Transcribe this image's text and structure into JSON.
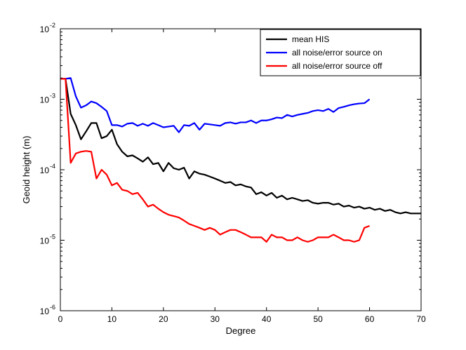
{
  "chart_data": {
    "type": "line",
    "title": "",
    "xlabel": "Degree",
    "ylabel": "Geoid height (m)",
    "xlim": [
      0,
      70
    ],
    "ylim": [
      1e-06,
      0.01
    ],
    "yscale": "log",
    "grid": false,
    "legend_position": "top-right",
    "xticks": [
      {
        "value": 0,
        "label": "0"
      },
      {
        "value": 10,
        "label": "10"
      },
      {
        "value": 20,
        "label": "20"
      },
      {
        "value": 30,
        "label": "30"
      },
      {
        "value": 40,
        "label": "40"
      },
      {
        "value": 50,
        "label": "50"
      },
      {
        "value": 60,
        "label": "60"
      },
      {
        "value": 70,
        "label": "70"
      }
    ],
    "yticks": [
      {
        "value": 1e-06,
        "base": "10",
        "exp": "-6"
      },
      {
        "value": 1e-05,
        "base": "10",
        "exp": "-5"
      },
      {
        "value": 0.0001,
        "base": "10",
        "exp": "-4"
      },
      {
        "value": 0.001,
        "base": "10",
        "exp": "-3"
      },
      {
        "value": 0.01,
        "base": "10",
        "exp": "-2"
      }
    ],
    "series": [
      {
        "name": "mean HIS",
        "color": "#000000",
        "x": [
          0,
          1,
          2,
          3,
          4,
          5,
          6,
          7,
          8,
          9,
          10,
          11,
          12,
          13,
          14,
          15,
          16,
          17,
          18,
          19,
          20,
          21,
          22,
          23,
          24,
          25,
          26,
          27,
          28,
          29,
          30,
          31,
          32,
          33,
          34,
          35,
          36,
          37,
          38,
          39,
          40,
          41,
          42,
          43,
          44,
          45,
          46,
          47,
          48,
          49,
          50,
          51,
          52,
          53,
          54,
          55,
          56,
          57,
          58,
          59,
          60,
          61,
          62,
          63,
          64,
          65,
          66,
          67,
          68,
          69,
          70
        ],
        "y": [
          0.00195,
          0.00195,
          0.00062,
          0.00043,
          0.00027,
          0.00035,
          0.00046,
          0.00046,
          0.00028,
          0.0003,
          0.00037,
          0.00023,
          0.00018,
          0.000155,
          0.00016,
          0.000145,
          0.00013,
          0.00015,
          0.00012,
          0.000125,
          9.5e-05,
          0.000125,
          0.000105,
          0.0001,
          0.000107,
          7.5e-05,
          9.5e-05,
          8.8e-05,
          8.5e-05,
          8e-05,
          7.5e-05,
          7e-05,
          6.5e-05,
          6.7e-05,
          6e-05,
          6.2e-05,
          5.8e-05,
          5.6e-05,
          4.5e-05,
          4.8e-05,
          4.3e-05,
          4.7e-05,
          4e-05,
          4.3e-05,
          3.8e-05,
          4e-05,
          3.8e-05,
          3.6e-05,
          3.7e-05,
          3.4e-05,
          3.3e-05,
          3.4e-05,
          3.4e-05,
          3.2e-05,
          3.3e-05,
          3e-05,
          3.1e-05,
          2.9e-05,
          3e-05,
          2.8e-05,
          2.9e-05,
          2.7e-05,
          2.8e-05,
          2.6e-05,
          2.7e-05,
          2.5e-05,
          2.4e-05,
          2.5e-05,
          2.4e-05,
          2.4e-05,
          2.4e-05
        ]
      },
      {
        "name": "all noise/error source on",
        "color": "#0000ff",
        "x": [
          0,
          1,
          2,
          3,
          4,
          5,
          6,
          7,
          8,
          9,
          10,
          11,
          12,
          13,
          14,
          15,
          16,
          17,
          18,
          19,
          20,
          21,
          22,
          23,
          24,
          25,
          26,
          27,
          28,
          29,
          30,
          31,
          32,
          33,
          34,
          35,
          36,
          37,
          38,
          39,
          40,
          41,
          42,
          43,
          44,
          45,
          46,
          47,
          48,
          49,
          50,
          51,
          52,
          53,
          54,
          55,
          56,
          57,
          58,
          59,
          60
        ],
        "y": [
          0.00195,
          0.00195,
          0.002,
          0.0011,
          0.00076,
          0.00082,
          0.00093,
          0.00088,
          0.00078,
          0.00068,
          0.00043,
          0.00043,
          0.00041,
          0.00045,
          0.00046,
          0.00042,
          0.00045,
          0.00042,
          0.00046,
          0.00043,
          0.0004,
          0.00041,
          0.00042,
          0.00034,
          0.00043,
          0.00042,
          0.00046,
          0.00037,
          0.00045,
          0.00044,
          0.00043,
          0.00042,
          0.00046,
          0.00047,
          0.00045,
          0.00047,
          0.00047,
          0.0005,
          0.00046,
          0.0005,
          0.0005,
          0.00052,
          0.00055,
          0.00054,
          0.0006,
          0.00057,
          0.0006,
          0.00062,
          0.00064,
          0.00068,
          0.0007,
          0.00068,
          0.00073,
          0.00066,
          0.00075,
          0.00078,
          0.00082,
          0.00085,
          0.00087,
          0.00088,
          0.001
        ]
      },
      {
        "name": "all noise/error source off",
        "color": "#ff0000",
        "x": [
          0,
          1,
          2,
          3,
          4,
          5,
          6,
          7,
          8,
          9,
          10,
          11,
          12,
          13,
          14,
          15,
          16,
          17,
          18,
          19,
          20,
          21,
          22,
          23,
          24,
          25,
          26,
          27,
          28,
          29,
          30,
          31,
          32,
          33,
          34,
          35,
          36,
          37,
          38,
          39,
          40,
          41,
          42,
          43,
          44,
          45,
          46,
          47,
          48,
          49,
          50,
          51,
          52,
          53,
          54,
          55,
          56,
          57,
          58,
          59,
          60
        ],
        "y": [
          0.00195,
          0.00195,
          0.000125,
          0.00017,
          0.00018,
          0.000185,
          0.00018,
          7.5e-05,
          0.0001,
          8.5e-05,
          6e-05,
          6.5e-05,
          5.2e-05,
          5e-05,
          4.5e-05,
          4.7e-05,
          3.8e-05,
          3e-05,
          3.2e-05,
          2.8e-05,
          2.5e-05,
          2.3e-05,
          2.2e-05,
          2.1e-05,
          1.9e-05,
          1.7e-05,
          1.6e-05,
          1.5e-05,
          1.4e-05,
          1.5e-05,
          1.4e-05,
          1.2e-05,
          1.3e-05,
          1.4e-05,
          1.4e-05,
          1.3e-05,
          1.2e-05,
          1.1e-05,
          1.1e-05,
          1.1e-05,
          9.5e-06,
          1.2e-05,
          1.1e-05,
          1.1e-05,
          1e-05,
          1e-05,
          1.1e-05,
          1e-05,
          9.5e-06,
          1e-05,
          1.1e-05,
          1.1e-05,
          1.1e-05,
          1.2e-05,
          1.1e-05,
          1e-05,
          1e-05,
          9.5e-06,
          1e-05,
          1.5e-05,
          1.6e-05
        ]
      }
    ]
  }
}
